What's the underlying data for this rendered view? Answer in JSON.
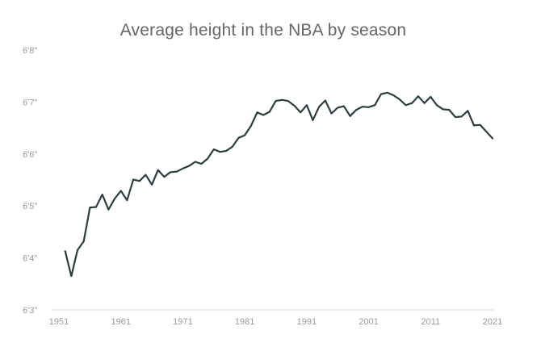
{
  "chart_data": {
    "type": "line",
    "title": "Average height in the NBA by season",
    "xlabel": "",
    "ylabel": "",
    "xlim": [
      1951,
      2021
    ],
    "ylim": [
      75,
      80
    ],
    "x_ticks": [
      {
        "value": 1951,
        "label": "1951"
      },
      {
        "value": 1961,
        "label": "1961"
      },
      {
        "value": 1971,
        "label": "1971"
      },
      {
        "value": 1981,
        "label": "1981"
      },
      {
        "value": 1991,
        "label": "1991"
      },
      {
        "value": 2001,
        "label": "2001"
      },
      {
        "value": 2011,
        "label": "2011"
      },
      {
        "value": 2021,
        "label": "2021"
      }
    ],
    "y_ticks": [
      {
        "value": 75,
        "label": "6'3\""
      },
      {
        "value": 76,
        "label": "6'4\""
      },
      {
        "value": 77,
        "label": "6'5\""
      },
      {
        "value": 78,
        "label": "6'6\""
      },
      {
        "value": 79,
        "label": "6'7\""
      },
      {
        "value": 80,
        "label": "6'8\""
      }
    ],
    "grid": false,
    "series": [
      {
        "color": "#2e3d3f",
        "x": [
          1952,
          1953,
          1954,
          1955,
          1956,
          1957,
          1958,
          1959,
          1960,
          1961,
          1962,
          1963,
          1964,
          1965,
          1966,
          1967,
          1968,
          1969,
          1970,
          1971,
          1972,
          1973,
          1974,
          1975,
          1976,
          1977,
          1978,
          1979,
          1980,
          1981,
          1982,
          1983,
          1984,
          1985,
          1986,
          1987,
          1988,
          1989,
          1990,
          1991,
          1992,
          1993,
          1994,
          1995,
          1996,
          1997,
          1998,
          1999,
          2000,
          2001,
          2002,
          2003,
          2004,
          2005,
          2006,
          2007,
          2008,
          2009,
          2010,
          2011,
          2012,
          2013,
          2014,
          2015,
          2016,
          2017,
          2018,
          2019,
          2020,
          2021
        ],
        "values": [
          76.13,
          75.65,
          76.15,
          76.32,
          76.97,
          76.98,
          77.22,
          76.93,
          77.14,
          77.29,
          77.11,
          77.51,
          77.48,
          77.6,
          77.41,
          77.69,
          77.56,
          77.65,
          77.66,
          77.72,
          77.77,
          77.85,
          77.81,
          77.91,
          78.09,
          78.04,
          78.06,
          78.14,
          78.31,
          78.36,
          78.54,
          78.8,
          78.75,
          78.81,
          79.02,
          79.04,
          79.02,
          78.93,
          78.8,
          78.94,
          78.65,
          78.91,
          79.03,
          78.78,
          78.89,
          78.92,
          78.73,
          78.85,
          78.91,
          78.9,
          78.94,
          79.15,
          79.18,
          79.13,
          79.05,
          78.94,
          78.98,
          79.11,
          78.98,
          79.1,
          78.94,
          78.86,
          78.85,
          78.71,
          78.72,
          78.83,
          78.55,
          78.56,
          78.43,
          78.3
        ]
      }
    ]
  }
}
